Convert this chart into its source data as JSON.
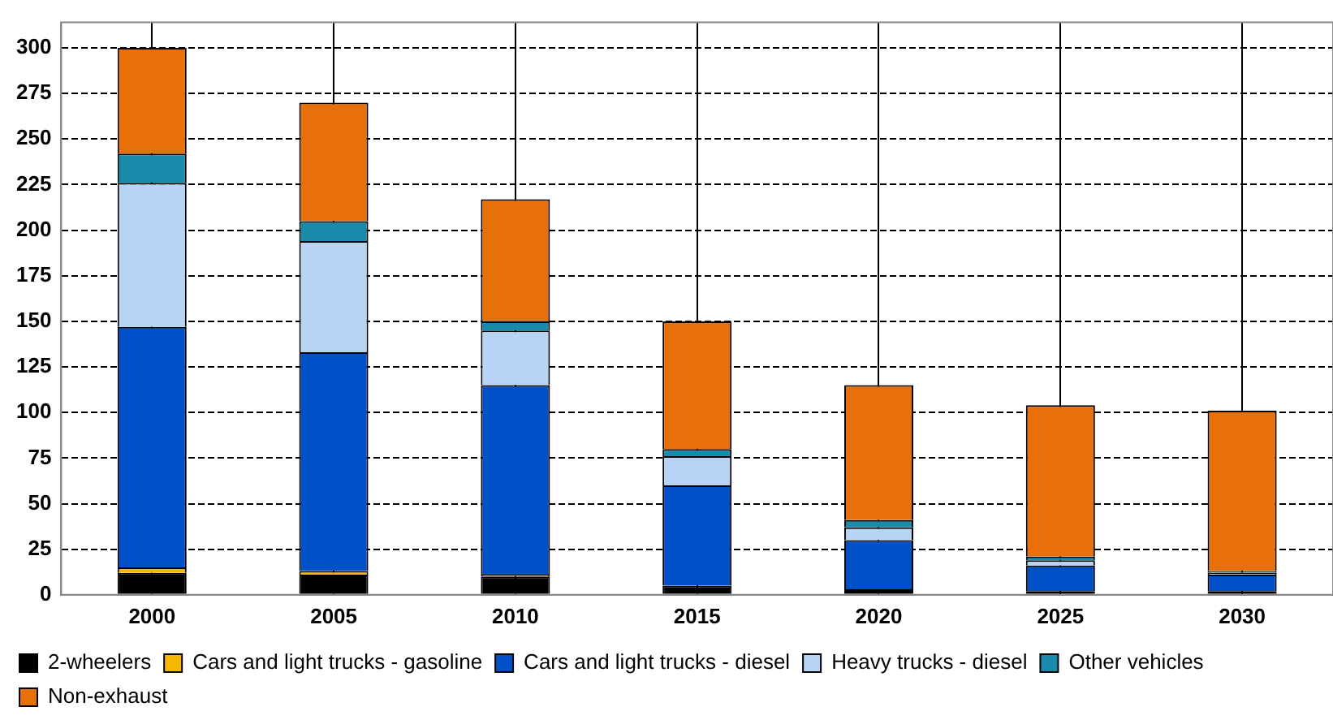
{
  "chart_data": {
    "type": "bar",
    "stacked": true,
    "categories": [
      "2000",
      "2005",
      "2010",
      "2015",
      "2020",
      "2025",
      "2030"
    ],
    "series": [
      {
        "name": "2-wheelers",
        "color": "#000000",
        "values": [
          12,
          11,
          10,
          5,
          3,
          2,
          2
        ]
      },
      {
        "name": "Cars and light trucks - gasoline",
        "color": "#f5b800",
        "values": [
          3,
          2,
          1,
          0,
          0,
          0,
          0
        ]
      },
      {
        "name": "Cars and light trucks - diesel",
        "color": "#0050c8",
        "values": [
          132,
          120,
          104,
          55,
          27,
          14,
          9
        ]
      },
      {
        "name": "Heavy trucks - diesel",
        "color": "#b8d4f4",
        "values": [
          79,
          61,
          30,
          16,
          7,
          3,
          1
        ]
      },
      {
        "name": "Other vehicles",
        "color": "#1a8aaa",
        "values": [
          16,
          11,
          5,
          4,
          4,
          2,
          1
        ]
      },
      {
        "name": "Non-exhaust",
        "color": "#e8700a",
        "values": [
          58,
          65,
          67,
          70,
          74,
          83,
          88
        ]
      }
    ],
    "ylim": [
      0,
      314
    ],
    "yticks": [
      0,
      25,
      50,
      75,
      100,
      125,
      150,
      175,
      200,
      225,
      250,
      275,
      300
    ],
    "grid": true,
    "legend": "bottom"
  }
}
